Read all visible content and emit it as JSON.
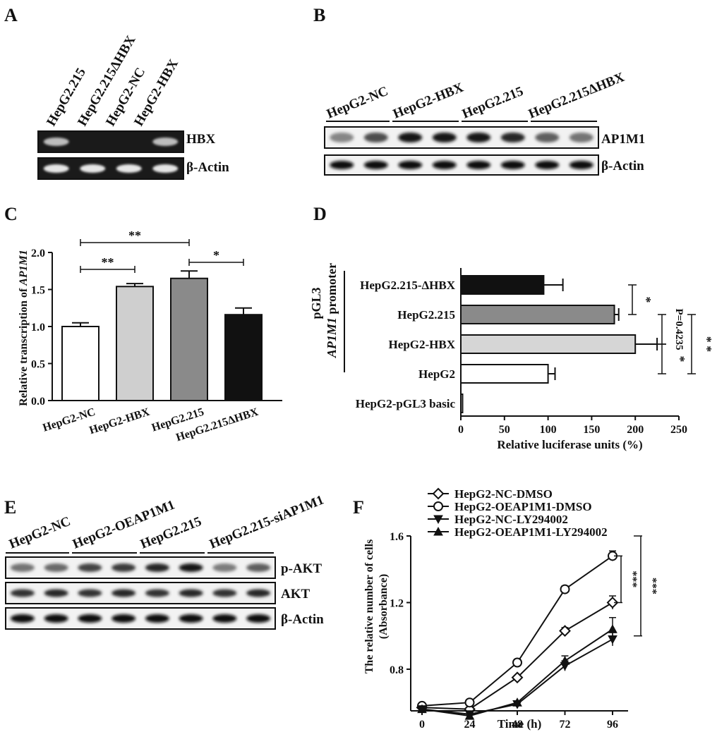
{
  "panels": {
    "A": {
      "letter": "A",
      "lanes": [
        "HepG2.215",
        "HepG2.215ΔHBX",
        "HepG2-NC",
        "HepG2-HBX"
      ],
      "bands": [
        "HBX",
        "β-Actin"
      ],
      "band_intensity": {
        "HBX": [
          0.8,
          0.0,
          0.0,
          0.8
        ],
        "β-Actin": [
          1,
          1,
          1,
          1
        ]
      }
    },
    "B": {
      "letter": "B",
      "groups": [
        "HepG2-NC",
        "HepG2-HBX",
        "HepG2.215",
        "HepG2.215ΔHBX"
      ],
      "bands": [
        "AP1M1",
        "β-Actin"
      ],
      "band_intensity": {
        "AP1M1": [
          0.35,
          0.65,
          0.95,
          0.95,
          0.95,
          0.85,
          0.55,
          0.45
        ],
        "β-Actin": [
          1,
          1,
          1,
          1,
          1,
          1,
          1,
          1
        ]
      }
    },
    "C": {
      "letter": "C"
    },
    "D": {
      "letter": "D",
      "group_label": "pGL3",
      "promoter_italic": "AP1M1",
      "promoter_rest": " promoter"
    },
    "E": {
      "letter": "E",
      "groups": [
        "HepG2-NC",
        "HepG2-OEAP1M1",
        "HepG2.215",
        "HepG2.215-siAP1M1"
      ],
      "bands": [
        "p-AKT",
        "AKT",
        "β-Actin"
      ],
      "band_intensity": {
        "p-AKT": [
          0.45,
          0.5,
          0.7,
          0.75,
          0.85,
          0.95,
          0.4,
          0.55
        ],
        "AKT": [
          0.8,
          0.85,
          0.8,
          0.85,
          0.8,
          0.85,
          0.8,
          0.85
        ],
        "β-Actin": [
          1,
          1,
          1,
          1,
          1,
          1,
          1,
          1
        ]
      }
    },
    "F": {
      "letter": "F"
    }
  },
  "chart_data": [
    {
      "panel": "C",
      "type": "bar",
      "categories": [
        "HepG2-NC",
        "HepG2-HBX",
        "HepG2.215",
        "HepG2.215ΔHBX"
      ],
      "values": [
        1.0,
        1.54,
        1.65,
        1.16
      ],
      "errors": [
        0.05,
        0.04,
        0.1,
        0.09
      ],
      "colors": [
        "#ffffff",
        "#cfcfcf",
        "#8a8a8a",
        "#111111"
      ],
      "ylabel_prefix": "Relative transcription of ",
      "ylabel_italic": "AP1M1",
      "ylim": [
        0,
        2.0
      ],
      "yticks": [
        "0.0",
        "0.5",
        "1.0",
        "1.5",
        "2.0"
      ],
      "significance": [
        {
          "from": 0,
          "to": 1,
          "label": "**"
        },
        {
          "from": 0,
          "to": 2,
          "label": "**"
        },
        {
          "from": 2,
          "to": 3,
          "label": "*"
        }
      ]
    },
    {
      "panel": "D",
      "type": "bar",
      "orientation": "horizontal",
      "categories": [
        "HepG2.215-ΔHBX",
        "HepG2.215",
        "HepG2-HBX",
        "HepG2",
        "HepG2-pGL3 basic"
      ],
      "values": [
        95,
        176,
        200,
        100,
        2
      ],
      "errors": [
        22,
        5,
        25,
        8,
        0
      ],
      "colors": [
        "#111111",
        "#8a8a8a",
        "#d6d6d6",
        "#ffffff",
        "#ffffff"
      ],
      "xlabel": "Relative luciferase units (%)",
      "xlim": [
        0,
        250
      ],
      "xticks": [
        "0",
        "50",
        "100",
        "150",
        "200",
        "250"
      ],
      "significance": [
        {
          "from": 0,
          "to": 1,
          "label": "*"
        },
        {
          "from": 1,
          "to": 2,
          "label": "P=0.4235"
        },
        {
          "from": 2,
          "to": 3,
          "label": "*"
        },
        {
          "from": 1,
          "to": 3,
          "label": "* *"
        }
      ]
    },
    {
      "panel": "F",
      "type": "line",
      "x": [
        0,
        24,
        48,
        72,
        96
      ],
      "xticks": [
        "0",
        "24",
        "48",
        "72",
        "96"
      ],
      "xlabel": "Time (h)",
      "ylabel_line1": "The relative number of cells",
      "ylabel_line2": "(Absorbance)",
      "ylim": [
        0.55,
        1.6
      ],
      "yticks": [
        "0.8",
        "1.2",
        "1.6"
      ],
      "ytick_values": [
        0.8,
        1.2,
        1.6
      ],
      "legend": "top-left",
      "series": [
        {
          "name": "HepG2-NC-DMSO",
          "marker": "diamond",
          "values": [
            0.57,
            0.56,
            0.75,
            1.03,
            1.2
          ],
          "errors": [
            0.01,
            0.01,
            0.01,
            0.02,
            0.04
          ]
        },
        {
          "name": "HepG2-OEAP1M1-DMSO",
          "marker": "circle",
          "values": [
            0.58,
            0.6,
            0.84,
            1.28,
            1.48
          ],
          "errors": [
            0.01,
            0.01,
            0.02,
            0.02,
            0.03
          ]
        },
        {
          "name": "HepG2-NC-LY294002",
          "marker": "triangle-down",
          "values": [
            0.56,
            0.53,
            0.59,
            0.82,
            0.98
          ],
          "errors": [
            0.01,
            0.01,
            0.01,
            0.03,
            0.04
          ]
        },
        {
          "name": "HepG2-OEAP1M1-LY294002",
          "marker": "triangle-up",
          "values": [
            0.56,
            0.52,
            0.6,
            0.85,
            1.04
          ],
          "errors": [
            0.01,
            0.01,
            0.01,
            0.03,
            0.07
          ]
        }
      ],
      "significance": [
        {
          "series_a": 1,
          "series_b": 0,
          "label": "***"
        },
        {
          "series_a": 1,
          "series_b": 3,
          "label": "***"
        }
      ]
    }
  ]
}
